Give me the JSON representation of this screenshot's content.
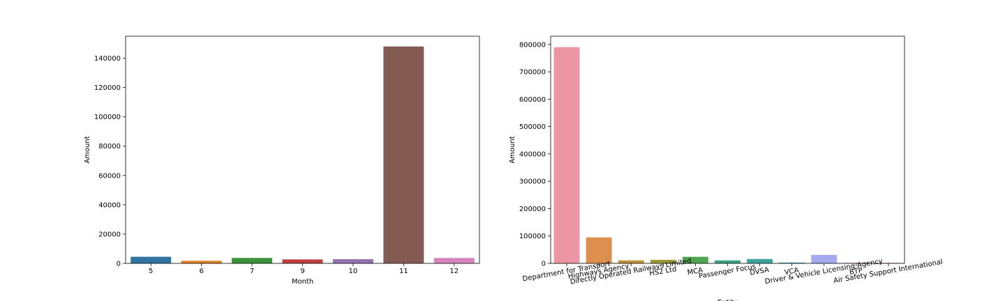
{
  "chart_data": [
    {
      "type": "bar",
      "categories": [
        "5",
        "6",
        "7",
        "9",
        "10",
        "11",
        "12"
      ],
      "values": [
        4500,
        1800,
        3700,
        2700,
        2900,
        148000,
        3700
      ],
      "colors": [
        "#3274a1",
        "#e1812c",
        "#3a923a",
        "#c03d3e",
        "#9372b2",
        "#845b53",
        "#d684bd"
      ],
      "xlabel": "Month",
      "ylabel": "Amount",
      "ylim": [
        0,
        155000
      ],
      "yticks": [
        0,
        20000,
        40000,
        60000,
        80000,
        100000,
        120000,
        140000
      ],
      "grid": false
    },
    {
      "type": "bar",
      "categories": [
        "Department for Transport",
        "Highways Agency",
        "Directly Operated Railways Limited",
        "HS2 Ltd",
        "MCA",
        "Passenger Focus",
        "DVSA",
        "VCA",
        "Driver & Vehicle Licensing Agency",
        "BTP",
        "Air Safety Support International"
      ],
      "values": [
        790000,
        95000,
        11000,
        13000,
        24000,
        11000,
        16000,
        3000,
        31000,
        2000,
        2000
      ],
      "colors": [
        "#ea96a3",
        "#de8f4d",
        "#c0913a",
        "#99993a",
        "#4fa651",
        "#3aa283",
        "#3ea39e",
        "#3d9eb6",
        "#a5aaf0",
        "#e88ceb",
        "#e98fc6"
      ],
      "xlabel": "Entity",
      "ylabel": "Amount",
      "ylim": [
        0,
        830000
      ],
      "yticks": [
        0,
        100000,
        200000,
        300000,
        400000,
        500000,
        600000,
        700000,
        800000
      ],
      "grid": false
    }
  ]
}
